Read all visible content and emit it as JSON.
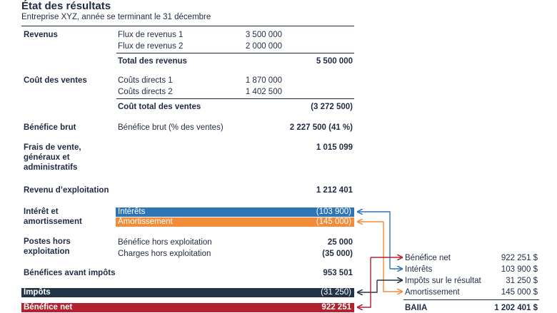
{
  "header": {
    "title": "État des résultats",
    "subtitle": "Entreprise XYZ, année se terminant le 31 décembre"
  },
  "revenus": {
    "label": "Revenus",
    "items": [
      {
        "label": "Flux de revenus 1",
        "value": "3 500 000"
      },
      {
        "label": "Flux de revenus 2",
        "value": "2 000 000"
      }
    ],
    "total_label": "Total des revenus",
    "total_value": "5 500 000"
  },
  "cout": {
    "label": "Coût des ventes",
    "items": [
      {
        "label": "Coûts directs 1",
        "value": "1 870 000"
      },
      {
        "label": "Coûts directs 2",
        "value": "1 402 500"
      }
    ],
    "total_label": "Coût total des ventes",
    "total_value": "(3 272 500)"
  },
  "benefice_brut": {
    "label": "Bénéfice brut",
    "item": "Bénéfice brut (% des ventes)",
    "value": "2 227 500 (41 %)"
  },
  "frais": {
    "label_lines": [
      "Frais de vente,",
      "généraux et",
      "administratifs"
    ],
    "value": "1 015 099"
  },
  "revenu_exploitation": {
    "label": "Revenu d’exploitation",
    "value": "1 212 401"
  },
  "interet": {
    "label_lines": [
      "Intérêt et",
      "amortissement"
    ],
    "interets_label": "Intérêts",
    "interets_value": "(103 900)",
    "amort_label": "Amortissement",
    "amort_value": "(145 000)"
  },
  "hors": {
    "label_lines": [
      "Postes hors",
      "exploitation"
    ],
    "items": [
      {
        "label": "Bénéfice hors exploitation",
        "value": "25 000"
      },
      {
        "label": "Charges hors exploitation",
        "value": "(35 000)"
      }
    ]
  },
  "avant_impots": {
    "label": "Bénéfices avant impôts",
    "value": "953 501"
  },
  "impots": {
    "label": "Impôts",
    "value": "(31 250)"
  },
  "net": {
    "label": "Bénéfice net",
    "value": "922 251"
  },
  "baiia": {
    "items": [
      {
        "label": "Bénéfice net",
        "value": "922 251 $"
      },
      {
        "label": "Intérêts",
        "value": "103 900 $"
      },
      {
        "label": "Impôts sur le résultat",
        "value": "31 250 $"
      },
      {
        "label": "Amortissement",
        "value": "145 000 $"
      }
    ],
    "total_label": "BAIIA",
    "total_value": "1 202 401 $"
  },
  "colors": {
    "navy": "#1f2a44",
    "blue": "#2e75b6",
    "orange": "#f28c38",
    "dark": "#243447",
    "red": "#b3202e"
  }
}
